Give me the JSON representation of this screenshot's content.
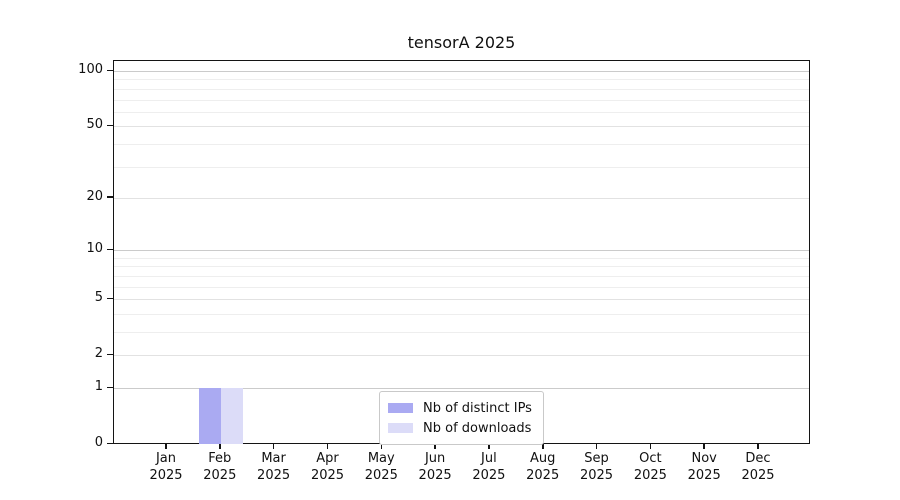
{
  "title": "tensorA 2025",
  "chart_data": {
    "type": "bar",
    "title": "tensorA 2025",
    "categories": [
      "Jan",
      "Feb",
      "Mar",
      "Apr",
      "May",
      "Jun",
      "Jul",
      "Aug",
      "Sep",
      "Oct",
      "Nov",
      "Dec"
    ],
    "year": "2025",
    "series": [
      {
        "name": "Nb of distinct IPs",
        "color": "#aaaaf2",
        "values": [
          0,
          1,
          0,
          0,
          0,
          0,
          0,
          0,
          0,
          0,
          0,
          0
        ]
      },
      {
        "name": "Nb of downloads",
        "color": "#dcdcf8",
        "values": [
          0,
          1,
          0,
          0,
          0,
          0,
          0,
          0,
          0,
          0,
          0,
          0
        ]
      }
    ],
    "y_scale": "log1p",
    "y_ticks": [
      0,
      1,
      2,
      5,
      10,
      20,
      50,
      100
    ],
    "y_decade_lines": [
      1,
      10,
      100
    ],
    "y_minor_lines": [
      3,
      4,
      6,
      7,
      8,
      9,
      30,
      40,
      60,
      70,
      80,
      90
    ],
    "ylim": [
      0,
      113
    ],
    "grid": "horizontal",
    "legend_position": "bottom-center",
    "background": "#ffffff"
  }
}
